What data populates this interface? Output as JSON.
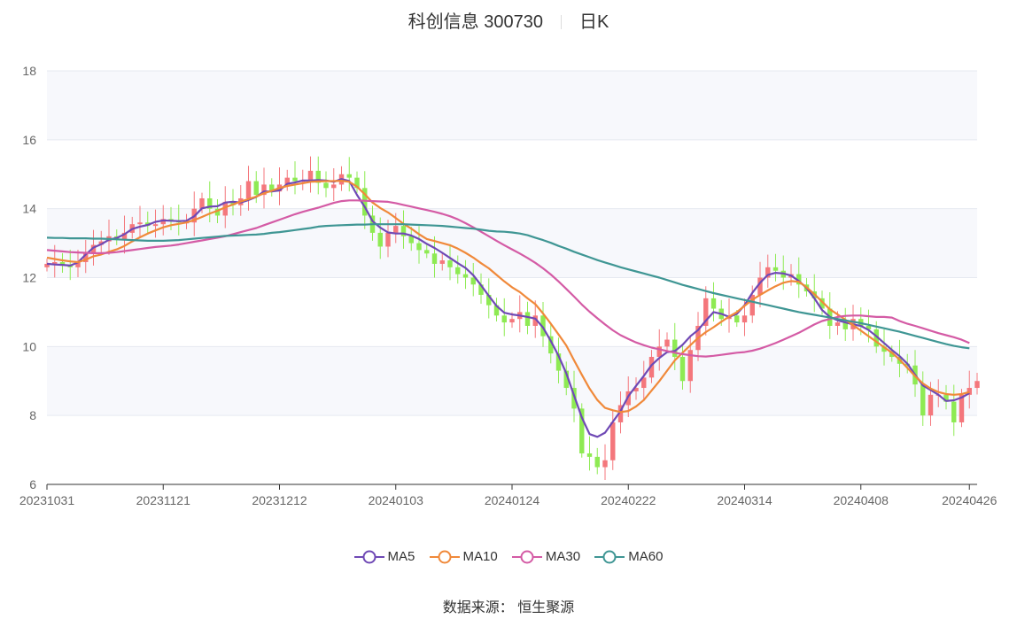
{
  "header": {
    "name": "科创信息 300730",
    "period": "日K"
  },
  "source": "数据来源： 恒生聚源",
  "colors": {
    "up": "#f4777c",
    "down": "#8eea53",
    "band": "#f7f8fc",
    "grid": "#e6e9f0"
  },
  "chart_data": {
    "type": "candlestick",
    "ylim": [
      6,
      18
    ],
    "yticks": [
      "6",
      "8",
      "10",
      "12",
      "14",
      "16",
      "18"
    ],
    "xticks": [
      "20231031",
      "20231121",
      "20231212",
      "20240103",
      "20240124",
      "20240222",
      "20240314",
      "20240408",
      "20240426"
    ],
    "xtick_index": [
      0,
      15,
      30,
      45,
      60,
      75,
      90,
      105,
      119
    ],
    "close": [
      12.4,
      12.45,
      12.35,
      12.3,
      12.45,
      12.7,
      12.95,
      13.05,
      13.2,
      13.1,
      13.3,
      13.55,
      13.6,
      13.5,
      13.55,
      13.7,
      13.65,
      13.6,
      13.6,
      14.0,
      14.3,
      14.0,
      13.8,
      14.2,
      14.1,
      14.3,
      14.8,
      14.4,
      14.7,
      14.5,
      14.7,
      14.9,
      14.8,
      14.8,
      15.1,
      14.75,
      14.6,
      14.7,
      15.0,
      14.9,
      14.6,
      13.8,
      13.3,
      12.9,
      13.3,
      13.5,
      13.2,
      13.0,
      12.8,
      12.7,
      12.4,
      12.5,
      12.3,
      12.1,
      12.0,
      11.8,
      11.5,
      11.2,
      10.9,
      10.7,
      10.8,
      11.0,
      10.6,
      10.9,
      10.3,
      9.8,
      9.3,
      8.8,
      8.2,
      6.9,
      6.8,
      6.5,
      6.7,
      7.8,
      8.3,
      8.7,
      8.8,
      9.1,
      9.7,
      10.0,
      10.2,
      9.7,
      9.0,
      9.9,
      10.6,
      11.4,
      11.1,
      10.8,
      10.9,
      10.7,
      10.9,
      11.5,
      12.0,
      12.3,
      12.2,
      12.0,
      12.1,
      11.8,
      11.6,
      11.4,
      11.1,
      10.6,
      10.7,
      10.5,
      10.8,
      10.6,
      10.5,
      10.0,
      9.85,
      9.7,
      9.5,
      9.45,
      8.9,
      8.0,
      8.6,
      8.6,
      8.4,
      7.8,
      8.6,
      8.8,
      9.0
    ],
    "series": [
      {
        "name": "MA5",
        "color": "#6f49b5",
        "values": [
          12.4,
          12.38,
          12.37,
          12.35,
          12.44,
          12.67,
          12.87,
          12.97,
          13.1,
          13.15,
          13.26,
          13.41,
          13.48,
          13.53,
          13.62,
          13.66,
          13.65,
          13.64,
          13.65,
          13.78,
          14.01,
          14.06,
          14.07,
          14.18,
          14.2,
          14.18,
          14.25,
          14.34,
          14.5,
          14.5,
          14.53,
          14.72,
          14.76,
          14.82,
          14.82,
          14.83,
          14.82,
          14.78,
          14.86,
          14.8,
          14.4,
          14.05,
          13.64,
          13.45,
          13.31,
          13.28,
          13.28,
          13.22,
          13.12,
          12.98,
          12.86,
          12.72,
          12.57,
          12.42,
          12.28,
          12.07,
          11.78,
          11.47,
          11.18,
          10.98,
          10.93,
          10.9,
          10.86,
          10.81,
          10.55,
          10.16,
          9.73,
          9.22,
          8.58,
          7.94,
          7.46,
          7.38,
          7.5,
          7.82,
          8.13,
          8.56,
          8.86,
          9.15,
          9.46,
          9.67,
          9.84,
          9.87,
          10.05,
          10.3,
          10.48,
          10.75,
          11.0,
          10.95,
          10.86,
          10.95,
          11.2,
          11.56,
          11.85,
          12.08,
          12.14,
          12.12,
          12.06,
          11.9,
          11.7,
          11.4,
          11.06,
          10.86,
          10.76,
          10.7,
          10.64,
          10.6,
          10.48,
          10.3,
          10.1,
          9.9,
          9.72,
          9.5,
          9.18,
          8.87,
          8.74,
          8.6,
          8.42,
          8.44,
          8.52,
          8.65
        ]
      },
      {
        "name": "MA10",
        "color": "#f0893a",
        "values": [
          12.58,
          12.54,
          12.5,
          12.47,
          12.45,
          12.52,
          12.62,
          12.67,
          12.75,
          12.82,
          12.92,
          13.05,
          13.17,
          13.28,
          13.37,
          13.46,
          13.52,
          13.56,
          13.6,
          13.67,
          13.76,
          13.86,
          13.94,
          14.04,
          14.12,
          14.21,
          14.28,
          14.35,
          14.45,
          14.52,
          14.6,
          14.66,
          14.7,
          14.74,
          14.78,
          14.79,
          14.8,
          14.8,
          14.81,
          14.78,
          14.64,
          14.42,
          14.18,
          14.02,
          13.89,
          13.73,
          13.56,
          13.42,
          13.26,
          13.12,
          13.06,
          13.0,
          12.94,
          12.84,
          12.72,
          12.58,
          12.42,
          12.27,
          12.08,
          11.89,
          11.72,
          11.58,
          11.4,
          11.23,
          10.96,
          10.66,
          10.35,
          10.03,
          9.6,
          9.18,
          8.78,
          8.45,
          8.22,
          8.15,
          8.1,
          8.13,
          8.26,
          8.45,
          8.72,
          9.0,
          9.3,
          9.6,
          9.82,
          10.04,
          10.25,
          10.42,
          10.56,
          10.72,
          10.87,
          11.0,
          11.18,
          11.36,
          11.5,
          11.63,
          11.75,
          11.85,
          11.9,
          11.88,
          11.72,
          11.52,
          11.3,
          11.08,
          10.93,
          10.78,
          10.62,
          10.46,
          10.3,
          10.14,
          9.98,
          9.82,
          9.62,
          9.38,
          9.14,
          8.93,
          8.78,
          8.68,
          8.62,
          8.6,
          8.62,
          8.68
        ]
      },
      {
        "name": "MA30",
        "color": "#d45ba5",
        "values": [
          12.8,
          12.78,
          12.76,
          12.74,
          12.73,
          12.72,
          12.71,
          12.71,
          12.72,
          12.74,
          12.77,
          12.8,
          12.83,
          12.86,
          12.89,
          12.91,
          12.93,
          12.96,
          13.0,
          13.04,
          13.08,
          13.12,
          13.16,
          13.2,
          13.26,
          13.32,
          13.38,
          13.44,
          13.52,
          13.6,
          13.68,
          13.76,
          13.84,
          13.91,
          13.97,
          14.03,
          14.1,
          14.17,
          14.22,
          14.24,
          14.24,
          14.23,
          14.22,
          14.21,
          14.2,
          14.16,
          14.11,
          14.06,
          14.01,
          13.96,
          13.91,
          13.85,
          13.78,
          13.69,
          13.58,
          13.46,
          13.33,
          13.2,
          13.07,
          12.94,
          12.82,
          12.7,
          12.57,
          12.43,
          12.27,
          12.09,
          11.89,
          11.67,
          11.45,
          11.22,
          11.01,
          10.82,
          10.64,
          10.47,
          10.33,
          10.22,
          10.12,
          10.04,
          9.97,
          9.92,
          9.87,
          9.82,
          9.78,
          9.75,
          9.72,
          9.71,
          9.73,
          9.76,
          9.79,
          9.82,
          9.84,
          9.88,
          9.94,
          10.02,
          10.1,
          10.2,
          10.3,
          10.4,
          10.52,
          10.64,
          10.74,
          10.8,
          10.86,
          10.89,
          10.9,
          10.9,
          10.88,
          10.86,
          10.86,
          10.84,
          10.74,
          10.66,
          10.6,
          10.53,
          10.46,
          10.39,
          10.33,
          10.27,
          10.2,
          10.1
        ]
      },
      {
        "name": "MA60",
        "color": "#3f9694",
        "values": [
          13.16,
          13.15,
          13.15,
          13.14,
          13.14,
          13.14,
          13.13,
          13.13,
          13.12,
          13.11,
          13.1,
          13.09,
          13.08,
          13.07,
          13.07,
          13.07,
          13.08,
          13.09,
          13.11,
          13.13,
          13.15,
          13.17,
          13.19,
          13.21,
          13.22,
          13.23,
          13.24,
          13.25,
          13.27,
          13.3,
          13.32,
          13.35,
          13.38,
          13.41,
          13.44,
          13.48,
          13.5,
          13.51,
          13.52,
          13.53,
          13.54,
          13.54,
          13.55,
          13.55,
          13.55,
          13.55,
          13.55,
          13.54,
          13.53,
          13.52,
          13.51,
          13.5,
          13.48,
          13.46,
          13.44,
          13.42,
          13.39,
          13.36,
          13.34,
          13.33,
          13.31,
          13.28,
          13.23,
          13.16,
          13.09,
          13.01,
          12.92,
          12.84,
          12.75,
          12.67,
          12.59,
          12.51,
          12.44,
          12.37,
          12.3,
          12.24,
          12.18,
          12.12,
          12.06,
          12.0,
          11.93,
          11.86,
          11.79,
          11.73,
          11.67,
          11.61,
          11.55,
          11.5,
          11.45,
          11.4,
          11.35,
          11.3,
          11.25,
          11.2,
          11.15,
          11.1,
          11.05,
          11.0,
          10.96,
          10.92,
          10.88,
          10.84,
          10.8,
          10.76,
          10.72,
          10.68,
          10.63,
          10.58,
          10.53,
          10.48,
          10.43,
          10.37,
          10.31,
          10.25,
          10.19,
          10.13,
          10.07,
          10.02,
          9.98,
          9.95
        ]
      }
    ]
  }
}
